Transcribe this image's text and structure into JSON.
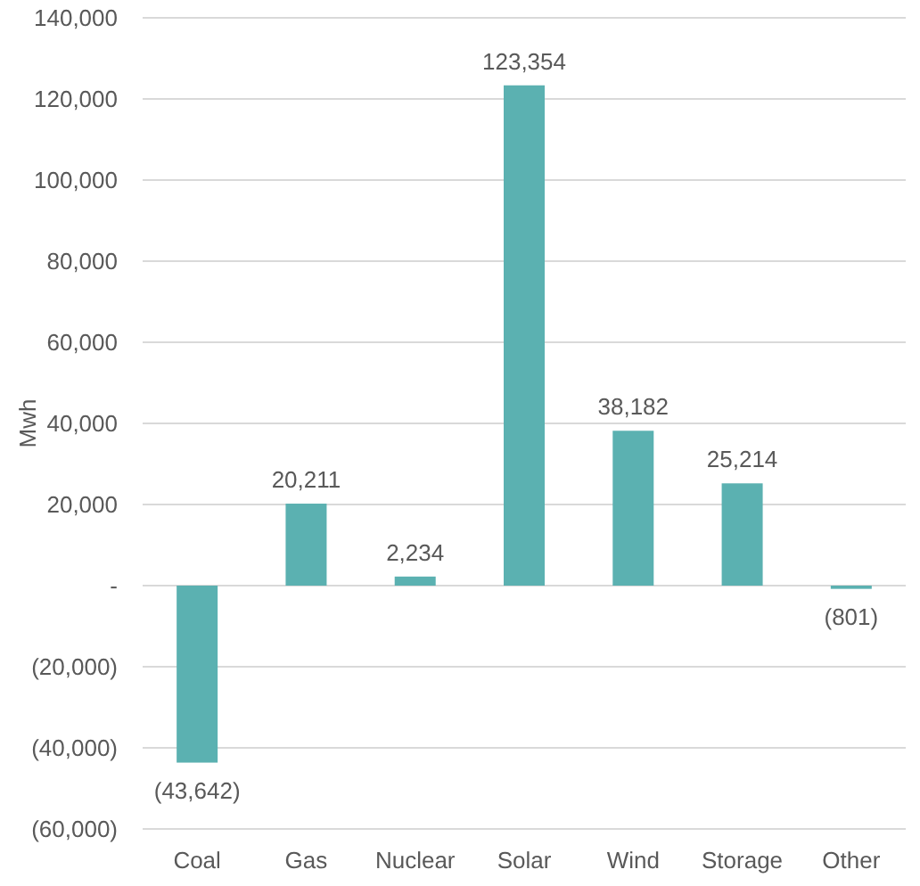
{
  "chart_data": {
    "type": "bar",
    "ylabel": "Mwh",
    "categories": [
      "Coal",
      "Gas",
      "Nuclear",
      "Solar",
      "Wind",
      "Storage",
      "Other"
    ],
    "values": [
      -43642,
      20211,
      2234,
      123354,
      38182,
      25214,
      -801
    ],
    "value_labels": [
      "(43,642)",
      "20,211",
      "2,234",
      "123,354",
      "38,182",
      "25,214",
      "(801)"
    ],
    "color": "#5bb1b1",
    "ylim": [
      -60000,
      140000
    ],
    "yticks": [
      {
        "value": -60000,
        "label": "(60,000)"
      },
      {
        "value": -40000,
        "label": "(40,000)"
      },
      {
        "value": -20000,
        "label": "(20,000)"
      },
      {
        "value": 0,
        "label": "-"
      },
      {
        "value": 20000,
        "label": "20,000"
      },
      {
        "value": 40000,
        "label": "40,000"
      },
      {
        "value": 60000,
        "label": "60,000"
      },
      {
        "value": 80000,
        "label": "80,000"
      },
      {
        "value": 100000,
        "label": "100,000"
      },
      {
        "value": 120000,
        "label": "120,000"
      },
      {
        "value": 140000,
        "label": "140,000"
      }
    ],
    "grid": "y"
  }
}
